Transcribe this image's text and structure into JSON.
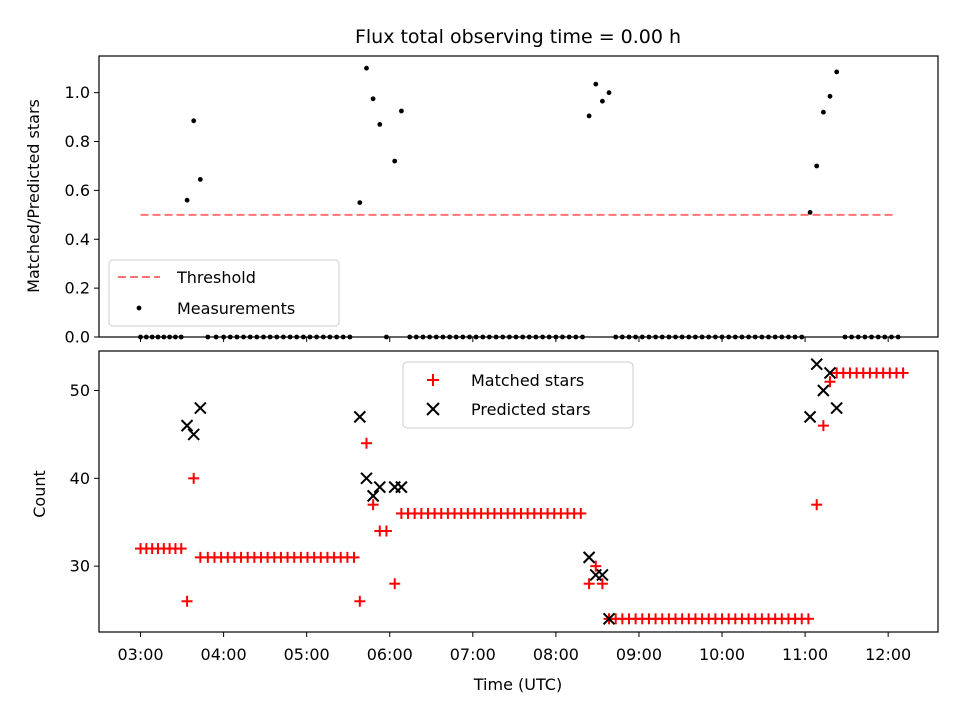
{
  "chart_data": [
    {
      "type": "scatter",
      "title": "Flux total observing time = 0.00 h",
      "ylabel": "Matched/Predicted stars",
      "ylim": [
        0,
        1.15
      ],
      "yticks": [
        0.0,
        0.2,
        0.4,
        0.6,
        0.8,
        1.0
      ],
      "ytick_labels": [
        "0.0",
        "0.2",
        "0.4",
        "0.6",
        "0.8",
        "1.0"
      ],
      "legend": {
        "position": "lower-left",
        "entries": [
          "Threshold",
          "Measurements"
        ]
      },
      "threshold": {
        "name": "Threshold",
        "y": 0.5,
        "x_start": 3.0,
        "x_end": 12.1,
        "color": "#ff7373"
      },
      "series": [
        {
          "name": "Measurements",
          "color": "#000000",
          "points": [
            [
              3.0,
              0
            ],
            [
              3.07,
              0
            ],
            [
              3.14,
              0
            ],
            [
              3.21,
              0
            ],
            [
              3.28,
              0
            ],
            [
              3.35,
              0
            ],
            [
              3.42,
              0
            ],
            [
              3.49,
              0
            ],
            [
              3.56,
              0.56
            ],
            [
              3.64,
              0.885
            ],
            [
              3.72,
              0.645
            ],
            [
              3.81,
              0
            ],
            [
              3.91,
              0
            ],
            [
              4.0,
              0
            ],
            [
              4.08,
              0
            ],
            [
              4.16,
              0
            ],
            [
              4.24,
              0
            ],
            [
              4.32,
              0
            ],
            [
              4.4,
              0
            ],
            [
              4.48,
              0
            ],
            [
              4.56,
              0
            ],
            [
              4.64,
              0
            ],
            [
              4.72,
              0
            ],
            [
              4.8,
              0
            ],
            [
              4.88,
              0
            ],
            [
              4.96,
              0
            ],
            [
              5.04,
              0
            ],
            [
              5.12,
              0
            ],
            [
              5.2,
              0
            ],
            [
              5.28,
              0
            ],
            [
              5.36,
              0
            ],
            [
              5.44,
              0
            ],
            [
              5.52,
              0
            ],
            [
              5.64,
              0.55
            ],
            [
              5.72,
              1.1
            ],
            [
              5.8,
              0.975
            ],
            [
              5.88,
              0.87
            ],
            [
              5.96,
              0
            ],
            [
              6.06,
              0.72
            ],
            [
              6.14,
              0.925
            ],
            [
              6.24,
              0
            ],
            [
              6.32,
              0
            ],
            [
              6.4,
              0
            ],
            [
              6.48,
              0
            ],
            [
              6.56,
              0
            ],
            [
              6.64,
              0
            ],
            [
              6.72,
              0
            ],
            [
              6.8,
              0
            ],
            [
              6.88,
              0
            ],
            [
              6.96,
              0
            ],
            [
              7.04,
              0
            ],
            [
              7.12,
              0
            ],
            [
              7.2,
              0
            ],
            [
              7.28,
              0
            ],
            [
              7.36,
              0
            ],
            [
              7.44,
              0
            ],
            [
              7.52,
              0
            ],
            [
              7.6,
              0
            ],
            [
              7.68,
              0
            ],
            [
              7.76,
              0
            ],
            [
              7.84,
              0
            ],
            [
              7.92,
              0
            ],
            [
              8.0,
              0
            ],
            [
              8.08,
              0
            ],
            [
              8.16,
              0
            ],
            [
              8.24,
              0
            ],
            [
              8.32,
              0
            ],
            [
              8.4,
              0.905
            ],
            [
              8.48,
              1.035
            ],
            [
              8.56,
              0.965
            ],
            [
              8.64,
              1.0
            ],
            [
              8.72,
              0
            ],
            [
              8.8,
              0
            ],
            [
              8.88,
              0
            ],
            [
              8.96,
              0
            ],
            [
              9.04,
              0
            ],
            [
              9.12,
              0
            ],
            [
              9.2,
              0
            ],
            [
              9.28,
              0
            ],
            [
              9.36,
              0
            ],
            [
              9.44,
              0
            ],
            [
              9.52,
              0
            ],
            [
              9.6,
              0
            ],
            [
              9.68,
              0
            ],
            [
              9.76,
              0
            ],
            [
              9.84,
              0
            ],
            [
              9.92,
              0
            ],
            [
              10.0,
              0
            ],
            [
              10.08,
              0
            ],
            [
              10.16,
              0
            ],
            [
              10.24,
              0
            ],
            [
              10.32,
              0
            ],
            [
              10.4,
              0
            ],
            [
              10.48,
              0
            ],
            [
              10.56,
              0
            ],
            [
              10.64,
              0
            ],
            [
              10.72,
              0
            ],
            [
              10.8,
              0
            ],
            [
              10.88,
              0
            ],
            [
              10.96,
              0
            ],
            [
              11.06,
              0.51
            ],
            [
              11.14,
              0.7
            ],
            [
              11.22,
              0.92
            ],
            [
              11.3,
              0.985
            ],
            [
              11.38,
              1.085
            ],
            [
              11.48,
              0
            ],
            [
              11.56,
              0
            ],
            [
              11.64,
              0
            ],
            [
              11.72,
              0
            ],
            [
              11.8,
              0
            ],
            [
              11.88,
              0
            ],
            [
              11.96,
              0
            ],
            [
              12.04,
              0
            ],
            [
              12.12,
              0
            ]
          ]
        }
      ]
    },
    {
      "type": "scatter",
      "xlabel": "Time (UTC)",
      "ylabel": "Count",
      "xlim": [
        2.5,
        12.6
      ],
      "ylim": [
        22.5,
        54.5
      ],
      "xticks": [
        3,
        4,
        5,
        6,
        7,
        8,
        9,
        10,
        11,
        12
      ],
      "xtick_labels": [
        "03:00",
        "04:00",
        "05:00",
        "06:00",
        "07:00",
        "08:00",
        "09:00",
        "10:00",
        "11:00",
        "12:00"
      ],
      "yticks": [
        30,
        40,
        50
      ],
      "ytick_labels": [
        "30",
        "40",
        "50"
      ],
      "legend": {
        "position": "upper-center",
        "entries": [
          "Matched stars",
          "Predicted stars"
        ]
      },
      "series": [
        {
          "name": "Matched stars",
          "marker": "plus",
          "color": "#ff0000",
          "points": [
            [
              3.0,
              32
            ],
            [
              3.07,
              32
            ],
            [
              3.14,
              32
            ],
            [
              3.21,
              32
            ],
            [
              3.28,
              32
            ],
            [
              3.35,
              32
            ],
            [
              3.42,
              32
            ],
            [
              3.49,
              32
            ],
            [
              3.56,
              26
            ],
            [
              3.64,
              40
            ],
            [
              3.72,
              31
            ],
            [
              3.81,
              31
            ],
            [
              3.89,
              31
            ],
            [
              3.97,
              31
            ],
            [
              4.05,
              31
            ],
            [
              4.13,
              31
            ],
            [
              4.21,
              31
            ],
            [
              4.29,
              31
            ],
            [
              4.37,
              31
            ],
            [
              4.45,
              31
            ],
            [
              4.53,
              31
            ],
            [
              4.61,
              31
            ],
            [
              4.69,
              31
            ],
            [
              4.77,
              31
            ],
            [
              4.85,
              31
            ],
            [
              4.93,
              31
            ],
            [
              5.01,
              31
            ],
            [
              5.09,
              31
            ],
            [
              5.17,
              31
            ],
            [
              5.25,
              31
            ],
            [
              5.33,
              31
            ],
            [
              5.41,
              31
            ],
            [
              5.49,
              31
            ],
            [
              5.57,
              31
            ],
            [
              5.64,
              26
            ],
            [
              5.72,
              44
            ],
            [
              5.8,
              37
            ],
            [
              5.88,
              34
            ],
            [
              5.96,
              34
            ],
            [
              6.06,
              28
            ],
            [
              6.14,
              36
            ],
            [
              6.22,
              36
            ],
            [
              6.3,
              36
            ],
            [
              6.38,
              36
            ],
            [
              6.46,
              36
            ],
            [
              6.54,
              36
            ],
            [
              6.62,
              36
            ],
            [
              6.7,
              36
            ],
            [
              6.78,
              36
            ],
            [
              6.86,
              36
            ],
            [
              6.94,
              36
            ],
            [
              7.02,
              36
            ],
            [
              7.1,
              36
            ],
            [
              7.18,
              36
            ],
            [
              7.26,
              36
            ],
            [
              7.34,
              36
            ],
            [
              7.42,
              36
            ],
            [
              7.5,
              36
            ],
            [
              7.58,
              36
            ],
            [
              7.66,
              36
            ],
            [
              7.74,
              36
            ],
            [
              7.82,
              36
            ],
            [
              7.9,
              36
            ],
            [
              7.98,
              36
            ],
            [
              8.06,
              36
            ],
            [
              8.14,
              36
            ],
            [
              8.22,
              36
            ],
            [
              8.3,
              36
            ],
            [
              8.4,
              28
            ],
            [
              8.48,
              30
            ],
            [
              8.56,
              28
            ],
            [
              8.64,
              24
            ],
            [
              8.72,
              24
            ],
            [
              8.8,
              24
            ],
            [
              8.88,
              24
            ],
            [
              8.96,
              24
            ],
            [
              9.04,
              24
            ],
            [
              9.12,
              24
            ],
            [
              9.2,
              24
            ],
            [
              9.28,
              24
            ],
            [
              9.36,
              24
            ],
            [
              9.44,
              24
            ],
            [
              9.52,
              24
            ],
            [
              9.6,
              24
            ],
            [
              9.68,
              24
            ],
            [
              9.76,
              24
            ],
            [
              9.84,
              24
            ],
            [
              9.92,
              24
            ],
            [
              10.0,
              24
            ],
            [
              10.08,
              24
            ],
            [
              10.16,
              24
            ],
            [
              10.24,
              24
            ],
            [
              10.32,
              24
            ],
            [
              10.4,
              24
            ],
            [
              10.48,
              24
            ],
            [
              10.56,
              24
            ],
            [
              10.64,
              24
            ],
            [
              10.72,
              24
            ],
            [
              10.8,
              24
            ],
            [
              10.88,
              24
            ],
            [
              10.96,
              24
            ],
            [
              11.04,
              24
            ],
            [
              11.14,
              37
            ],
            [
              11.22,
              46
            ],
            [
              11.3,
              51
            ],
            [
              11.38,
              52
            ],
            [
              11.46,
              52
            ],
            [
              11.54,
              52
            ],
            [
              11.62,
              52
            ],
            [
              11.7,
              52
            ],
            [
              11.78,
              52
            ],
            [
              11.86,
              52
            ],
            [
              11.94,
              52
            ],
            [
              12.02,
              52
            ],
            [
              12.1,
              52
            ],
            [
              12.18,
              52
            ]
          ]
        },
        {
          "name": "Predicted stars",
          "marker": "x",
          "color": "#000000",
          "points": [
            [
              3.56,
              46
            ],
            [
              3.64,
              45
            ],
            [
              3.72,
              48
            ],
            [
              5.64,
              47
            ],
            [
              5.72,
              40
            ],
            [
              5.8,
              38
            ],
            [
              5.88,
              39
            ],
            [
              6.06,
              39
            ],
            [
              6.14,
              39
            ],
            [
              8.4,
              31
            ],
            [
              8.48,
              29
            ],
            [
              8.56,
              29
            ],
            [
              8.64,
              24
            ],
            [
              11.06,
              47
            ],
            [
              11.14,
              53
            ],
            [
              11.22,
              50
            ],
            [
              11.3,
              52
            ],
            [
              11.38,
              48
            ]
          ]
        }
      ]
    }
  ]
}
